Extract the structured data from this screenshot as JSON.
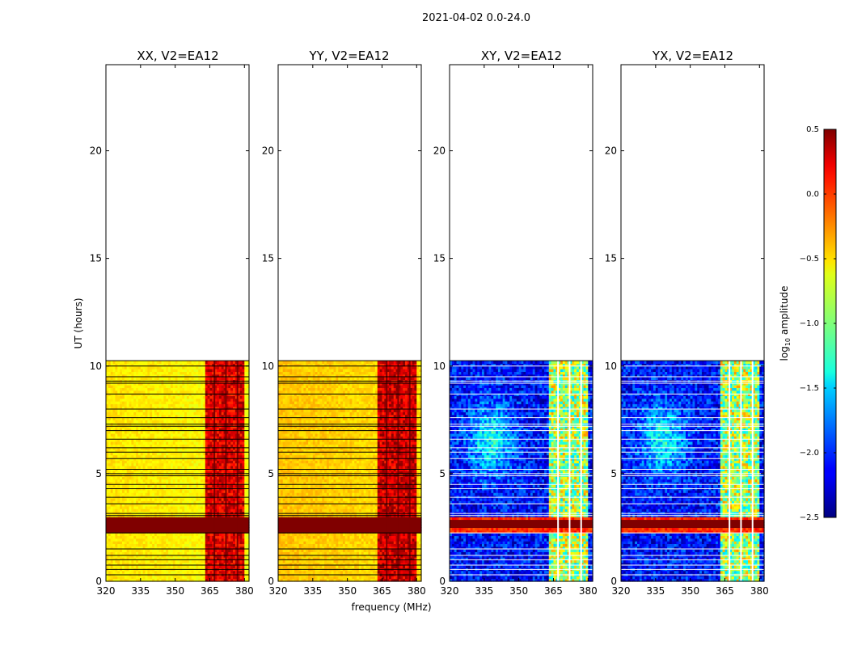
{
  "suptitle": "2021-04-02 0.0-24.0",
  "chart_data": [
    {
      "type": "heatmap",
      "title": "XX, V2=EA12",
      "pol": "XX",
      "ylabel": "UT (hours)",
      "xlim": [
        320,
        382
      ],
      "ylim": [
        0,
        24
      ],
      "xticks": [
        320,
        335,
        350,
        365,
        380
      ],
      "yticks": [
        0,
        5,
        10,
        15,
        20
      ],
      "data_extent_hours": [
        0,
        10.25
      ],
      "base_log10_amplitude": -0.55,
      "rfi_band_mhz": [
        363,
        380
      ],
      "rfi_log10_amplitude": 0.2,
      "saturated_hours": [
        2.3,
        3.0
      ]
    },
    {
      "type": "heatmap",
      "title": "YY, V2=EA12",
      "pol": "YY",
      "xlabel": "frequency (MHz)",
      "xlim": [
        320,
        382
      ],
      "ylim": [
        0,
        24
      ],
      "xticks": [
        320,
        335,
        350,
        365,
        380
      ],
      "yticks": [
        0,
        5,
        10,
        15,
        20
      ],
      "data_extent_hours": [
        0,
        10.25
      ],
      "base_log10_amplitude": -0.45,
      "rfi_band_mhz": [
        363,
        380
      ],
      "rfi_log10_amplitude": 0.25,
      "saturated_hours": [
        2.3,
        3.0
      ]
    },
    {
      "type": "heatmap",
      "title": "XY, V2=EA12",
      "pol": "XY",
      "xlim": [
        320,
        382
      ],
      "ylim": [
        0,
        24
      ],
      "xticks": [
        320,
        335,
        350,
        365,
        380
      ],
      "yticks": [
        0,
        5,
        10,
        15,
        20
      ],
      "data_extent_hours": [
        0,
        10.25
      ],
      "base_log10_amplitude": -2.1,
      "rfi_band_mhz": [
        363,
        380
      ],
      "rfi_log10_amplitude": -0.9,
      "saturated_hours": [
        2.3,
        3.0
      ]
    },
    {
      "type": "heatmap",
      "title": "YX, V2=EA12",
      "pol": "YX",
      "xlim": [
        320,
        382
      ],
      "ylim": [
        0,
        24
      ],
      "xticks": [
        320,
        335,
        350,
        365,
        380
      ],
      "yticks": [
        0,
        5,
        10,
        15,
        20
      ],
      "data_extent_hours": [
        0,
        10.25
      ],
      "base_log10_amplitude": -2.1,
      "rfi_band_mhz": [
        363,
        380
      ],
      "rfi_log10_amplitude": -0.9,
      "saturated_hours": [
        2.3,
        3.0
      ]
    }
  ],
  "colorbar": {
    "label": "log₁₀ amplitude",
    "label_base": "log",
    "label_sub": "10",
    "label_rest": " amplitude",
    "range": [
      -2.5,
      0.5
    ],
    "ticks": [
      0.5,
      0.0,
      -0.5,
      -1.0,
      -1.5,
      -2.0,
      -2.5
    ],
    "tick_labels": [
      "0.5",
      "0.0",
      "−0.5",
      "−1.0",
      "−1.5",
      "−2.0",
      "−2.5"
    ],
    "colormap": "jet"
  },
  "flagged_row_hours": [
    0.3,
    0.55,
    0.75,
    1.0,
    1.2,
    1.5,
    2.25,
    3.05,
    3.15,
    3.6,
    3.9,
    4.3,
    4.5,
    4.9,
    5.0,
    5.2,
    5.7,
    6.0,
    6.2,
    6.6,
    7.0,
    7.2,
    7.3,
    7.6,
    8.0,
    8.7,
    9.2,
    9.3,
    9.5,
    10.0
  ],
  "flagged_chan_mhz": [
    367,
    372,
    377
  ]
}
